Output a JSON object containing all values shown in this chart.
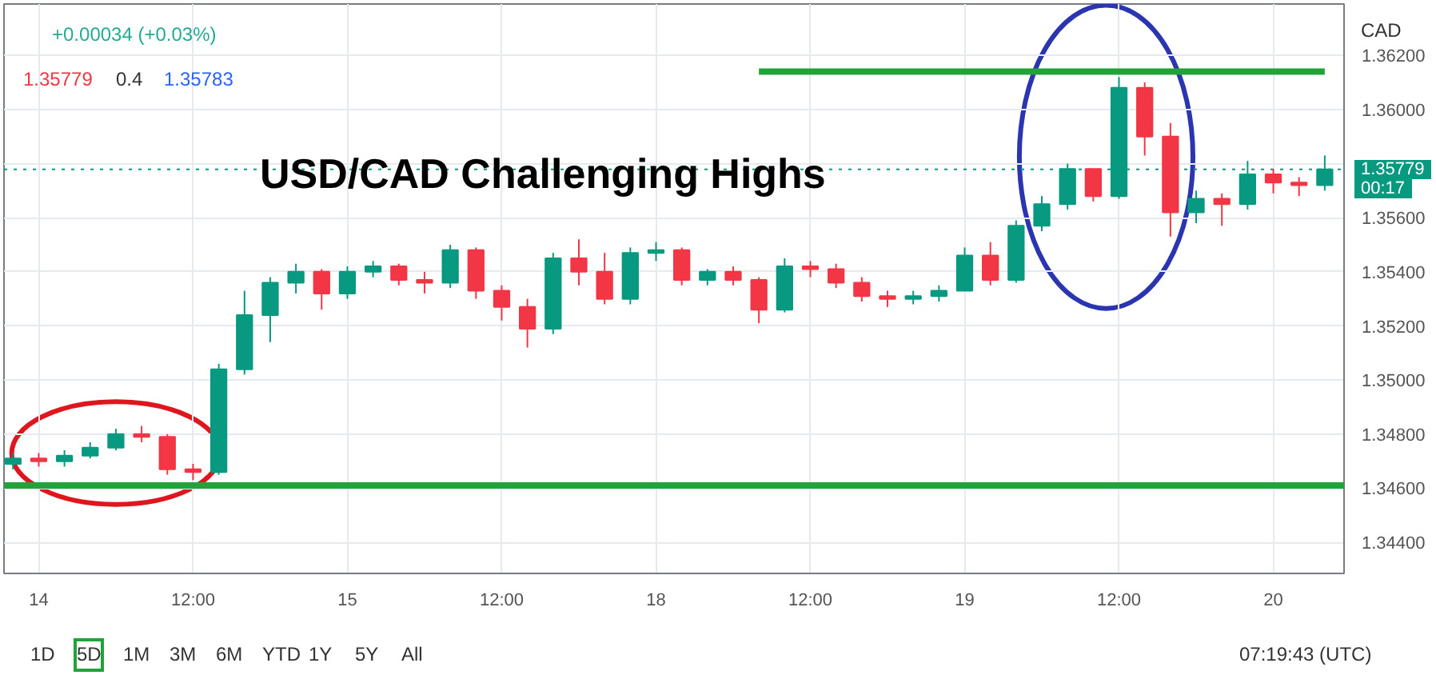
{
  "chart_data": {
    "type": "candlestick",
    "title": "USD/CAD Challenging Highs",
    "categories": [
      null,
      "14",
      null,
      null,
      null,
      null,
      null,
      "12:00",
      null,
      null,
      null,
      null,
      null,
      "15",
      null,
      null,
      null,
      null,
      null,
      "12:00",
      null,
      null,
      null,
      null,
      null,
      "18",
      null,
      null,
      null,
      null,
      null,
      "12:00",
      null,
      null,
      null,
      null,
      null,
      "19",
      null,
      null,
      null,
      null,
      null,
      "12:00",
      null,
      null,
      null,
      null,
      null,
      "20",
      null,
      null
    ],
    "ohlc": [
      [
        1.3469,
        1.3473,
        1.3467,
        1.3471
      ],
      [
        1.3471,
        1.3473,
        1.3468,
        1.347
      ],
      [
        1.347,
        1.3474,
        1.3468,
        1.3472
      ],
      [
        1.3472,
        1.3477,
        1.3471,
        1.3475
      ],
      [
        1.3475,
        1.3482,
        1.3474,
        1.348
      ],
      [
        1.348,
        1.3483,
        1.3477,
        1.3479
      ],
      [
        1.3479,
        1.348,
        1.3465,
        1.3467
      ],
      [
        1.3467,
        1.3469,
        1.3463,
        1.3466
      ],
      [
        1.3466,
        1.3506,
        1.3465,
        1.3504
      ],
      [
        1.3504,
        1.3533,
        1.3502,
        1.3524
      ],
      [
        1.3524,
        1.3538,
        1.3514,
        1.3536
      ],
      [
        1.3536,
        1.3543,
        1.3532,
        1.354
      ],
      [
        1.354,
        1.3541,
        1.3526,
        1.3532
      ],
      [
        1.3532,
        1.3542,
        1.353,
        1.354
      ],
      [
        1.354,
        1.3544,
        1.3538,
        1.3542
      ],
      [
        1.3542,
        1.3543,
        1.3535,
        1.3537
      ],
      [
        1.3537,
        1.354,
        1.3532,
        1.3536
      ],
      [
        1.3536,
        1.355,
        1.3534,
        1.3548
      ],
      [
        1.3548,
        1.3549,
        1.353,
        1.3533
      ],
      [
        1.3533,
        1.3535,
        1.3522,
        1.3527
      ],
      [
        1.3527,
        1.353,
        1.3512,
        1.3519
      ],
      [
        1.3519,
        1.3547,
        1.3517,
        1.3545
      ],
      [
        1.3545,
        1.3552,
        1.3535,
        1.354
      ],
      [
        1.354,
        1.3547,
        1.3528,
        1.353
      ],
      [
        1.353,
        1.3549,
        1.3528,
        1.3547
      ],
      [
        1.3547,
        1.3551,
        1.3544,
        1.3548
      ],
      [
        1.3548,
        1.3549,
        1.3535,
        1.3537
      ],
      [
        1.3537,
        1.3541,
        1.3535,
        1.354
      ],
      [
        1.354,
        1.3542,
        1.3535,
        1.3537
      ],
      [
        1.3537,
        1.3538,
        1.3521,
        1.3526
      ],
      [
        1.3526,
        1.3545,
        1.3525,
        1.3542
      ],
      [
        1.3542,
        1.3544,
        1.3538,
        1.3541
      ],
      [
        1.3541,
        1.3543,
        1.3534,
        1.3536
      ],
      [
        1.3536,
        1.3538,
        1.3529,
        1.3531
      ],
      [
        1.3531,
        1.3533,
        1.3527,
        1.353
      ],
      [
        1.353,
        1.3533,
        1.3528,
        1.3531
      ],
      [
        1.3531,
        1.3535,
        1.3529,
        1.3533
      ],
      [
        1.3533,
        1.3549,
        1.3533,
        1.3546
      ],
      [
        1.3546,
        1.3551,
        1.3535,
        1.3537
      ],
      [
        1.3537,
        1.3559,
        1.3536,
        1.3557
      ],
      [
        1.3557,
        1.3568,
        1.3555,
        1.3565
      ],
      [
        1.3565,
        1.358,
        1.3563,
        1.3578
      ],
      [
        1.3578,
        1.3578,
        1.3566,
        1.3568
      ],
      [
        1.3568,
        1.3612,
        1.3567,
        1.3608
      ],
      [
        1.3608,
        1.361,
        1.3583,
        1.359
      ],
      [
        1.359,
        1.3595,
        1.3553,
        1.3562
      ],
      [
        1.3562,
        1.357,
        1.3558,
        1.3567
      ],
      [
        1.3567,
        1.3569,
        1.3557,
        1.3565
      ],
      [
        1.3565,
        1.3581,
        1.3563,
        1.3576
      ],
      [
        1.3576,
        1.3578,
        1.3569,
        1.3573
      ],
      [
        1.3573,
        1.3575,
        1.3568,
        1.3572
      ],
      [
        1.3572,
        1.3583,
        1.357,
        1.35779
      ]
    ],
    "colors": [
      "#089981",
      "#f23645",
      "#089981",
      "#089981",
      "#089981",
      "#f23645",
      "#f23645",
      "#f23645",
      "#089981",
      "#089981",
      "#089981",
      "#089981",
      "#f23645",
      "#089981",
      "#089981",
      "#f23645",
      "#f23645",
      "#089981",
      "#f23645",
      "#f23645",
      "#f23645",
      "#089981",
      "#f23645",
      "#f23645",
      "#089981",
      "#089981",
      "#f23645",
      "#089981",
      "#f23645",
      "#f23645",
      "#089981",
      "#f23645",
      "#f23645",
      "#f23645",
      "#f23645",
      "#089981",
      "#089981",
      "#089981",
      "#f23645",
      "#089981",
      "#089981",
      "#089981",
      "#f23645",
      "#089981",
      "#f23645",
      "#f23645",
      "#089981",
      "#f23645",
      "#089981",
      "#f23645",
      "#f23645",
      "#089981"
    ],
    "series": [
      {
        "type": "line",
        "values": [
          null,
          null,
          null,
          null,
          null,
          null,
          null,
          null,
          null,
          null,
          null,
          null,
          null,
          null,
          null,
          null,
          null,
          null,
          null,
          null,
          null,
          null,
          null,
          null,
          null,
          null,
          null,
          null,
          null,
          1.3614,
          1.3614,
          1.3614,
          1.3614,
          1.3614,
          1.3614,
          1.3614,
          1.3614,
          1.3614,
          1.3614,
          1.3614,
          1.3614,
          1.3614,
          1.3614,
          1.3614,
          1.3614,
          1.3614,
          1.3614,
          1.3614,
          1.3614,
          1.3614,
          1.3614,
          1.3614
        ],
        "color": "#22a33a"
      }
    ],
    "ref_lines": [
      {
        "axis": "y",
        "value": 1.3461,
        "color": "#22a33a",
        "line_style": "solid"
      },
      {
        "axis": "y",
        "value": 1.35779,
        "label": "1.35779",
        "color": "#089981",
        "line_style": "dotted"
      }
    ],
    "ylim": [
      1.34285,
      1.3639
    ],
    "yticks": [
      {
        "value": 1.344,
        "label": "1.34400"
      },
      {
        "value": 1.346,
        "label": "1.34600"
      },
      {
        "value": 1.348,
        "label": "1.34800"
      },
      {
        "value": 1.35,
        "label": "1.35000"
      },
      {
        "value": 1.352,
        "label": "1.35200"
      },
      {
        "value": 1.354,
        "label": "1.35400"
      },
      {
        "value": 1.356,
        "label": "1.35600"
      },
      {
        "value": 1.358,
        "label": null
      },
      {
        "value": 1.36,
        "label": "1.36000"
      },
      {
        "value": 1.362,
        "label": "1.36200"
      }
    ],
    "grid": true,
    "annotations": [
      "+0.00034 (+0.03%)",
      "1.35779",
      "0.4",
      "1.35783",
      "CAD",
      "00:17",
      "1D",
      "5D",
      "1M",
      "3M",
      "6M",
      "YTD",
      "1Y",
      "5Y",
      "All",
      "07:19:43 (UTC)"
    ]
  }
}
